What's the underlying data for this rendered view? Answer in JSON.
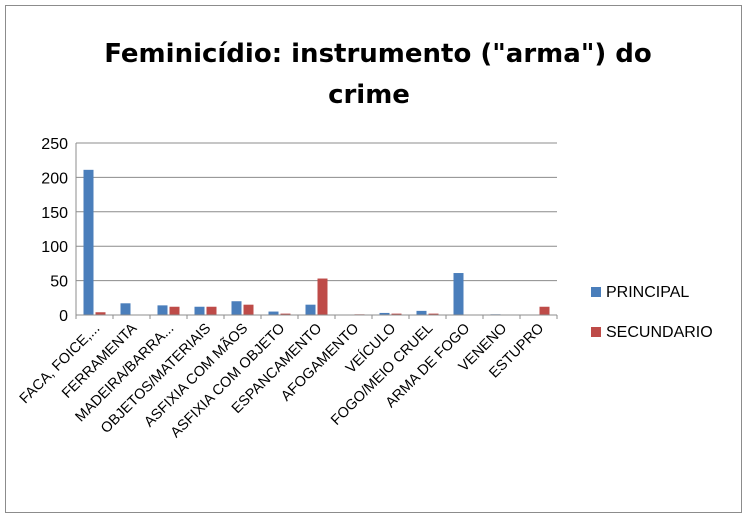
{
  "chart_data": {
    "type": "bar",
    "title_line1": "Feminicídio: instrumento (\"arma\")  do",
    "title_line2": "crime",
    "categories": [
      "FACA, FOICE,...",
      "FERRAMENTA",
      "MADEIRA/BARRA...",
      "OBJETOS/MATERIAIS",
      "ASFIXIA COM MÃOS",
      "ASFIXIA COM OBJETO",
      "ESPANCAMENTO",
      "AFOGAMENTO",
      "VEÍCULO",
      "FOGO/MEIO CRUEL",
      "ARMA DE FOGO",
      "VENENO",
      "ESTUPRO"
    ],
    "series": [
      {
        "name": "PRINCIPAL",
        "color": "#4a7ebb",
        "values": [
          211,
          17,
          14,
          12,
          20,
          5,
          15,
          0,
          3,
          6,
          61,
          1,
          0
        ]
      },
      {
        "name": "SECUNDARIO",
        "color": "#be4b48",
        "values": [
          4,
          0,
          12,
          12,
          15,
          2,
          53,
          1,
          2,
          2,
          0,
          0,
          12
        ]
      }
    ],
    "ylim": [
      0,
      250
    ],
    "yticks": [
      0,
      50,
      100,
      150,
      200,
      250
    ],
    "grid": true,
    "legend": "right"
  }
}
